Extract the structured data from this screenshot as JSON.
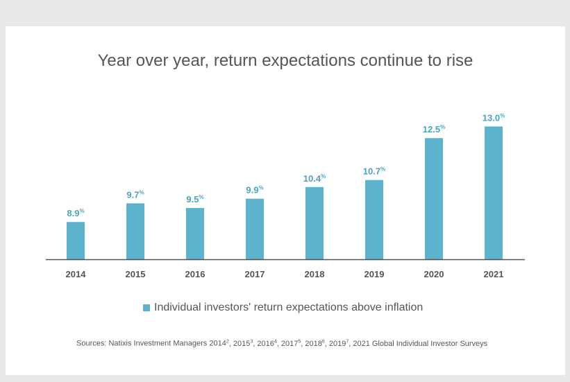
{
  "chart_data": {
    "type": "bar",
    "title": "Year over year, return expectations continue to rise",
    "categories": [
      "2014",
      "2015",
      "2016",
      "2017",
      "2018",
      "2019",
      "2020",
      "2021"
    ],
    "series": [
      {
        "name": "Individual investors' return expectations above inflation",
        "values": [
          8.9,
          9.7,
          9.5,
          9.9,
          10.4,
          10.7,
          12.5,
          13.0
        ],
        "labels": [
          "8.9%",
          "9.7%",
          "9.5%",
          "9.9%",
          "10.4%",
          "10.7%",
          "12.5%",
          "13.0%"
        ]
      }
    ],
    "ylim": [
      7.3,
      13.25
    ],
    "grid": false,
    "legend_position": "bottom",
    "bar_color": "#5eb3cc",
    "label_color": "#4aa3bd",
    "axis_color": "#555555"
  },
  "source": {
    "prefix": "Sources: Natixis Investment Managers 2014",
    "parts": [
      {
        "sup": "2",
        "text": ", 2015"
      },
      {
        "sup": "3",
        "text": ", 2016"
      },
      {
        "sup": "4",
        "text": ", 2017"
      },
      {
        "sup": "5",
        "text": ", 2018"
      },
      {
        "sup": "6",
        "text": ", 2019"
      },
      {
        "sup": "7",
        "text": ", 2021 Global Individual Investor Surveys"
      }
    ]
  }
}
